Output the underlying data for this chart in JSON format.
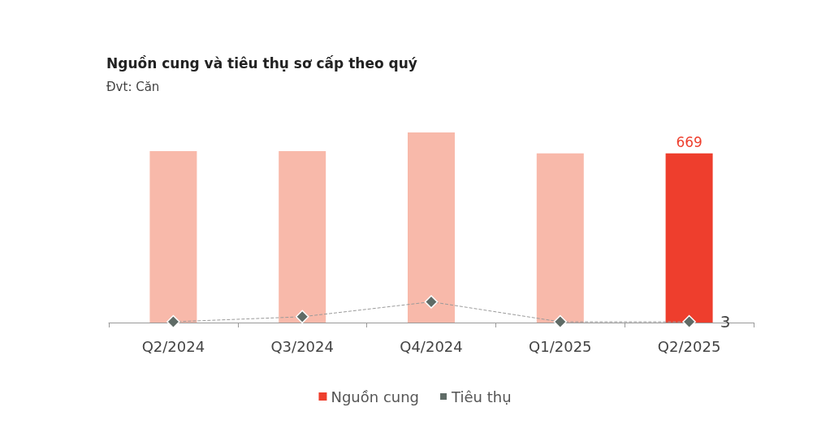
{
  "chart_data": {
    "type": "bar",
    "title": "Nguồn cung và tiêu thụ sơ cấp theo quý",
    "subtitle": "Đvt: Căn",
    "categories": [
      "Q2/2024",
      "Q3/2024",
      "Q4/2024",
      "Q1/2025",
      "Q2/2025"
    ],
    "series": [
      {
        "name": "Nguồn cung",
        "color": "#ee3e2d",
        "colors": [
          "#f8b9aa",
          "#f8b9aa",
          "#f8b9aa",
          "#f8b9aa",
          "#ee3e2d"
        ],
        "values": [
          678,
          678,
          752,
          669,
          669
        ],
        "value_labels": [
          null,
          null,
          null,
          null,
          "669"
        ]
      },
      {
        "name": "Tiêu thụ",
        "type": "line",
        "color": "#5f6b66",
        "values": [
          3,
          23,
          82,
          3,
          3
        ],
        "value_labels": [
          null,
          null,
          null,
          null,
          "3"
        ],
        "marker": "diamond",
        "line_style": "dashed"
      }
    ],
    "grid": false,
    "legend": "bottom"
  }
}
